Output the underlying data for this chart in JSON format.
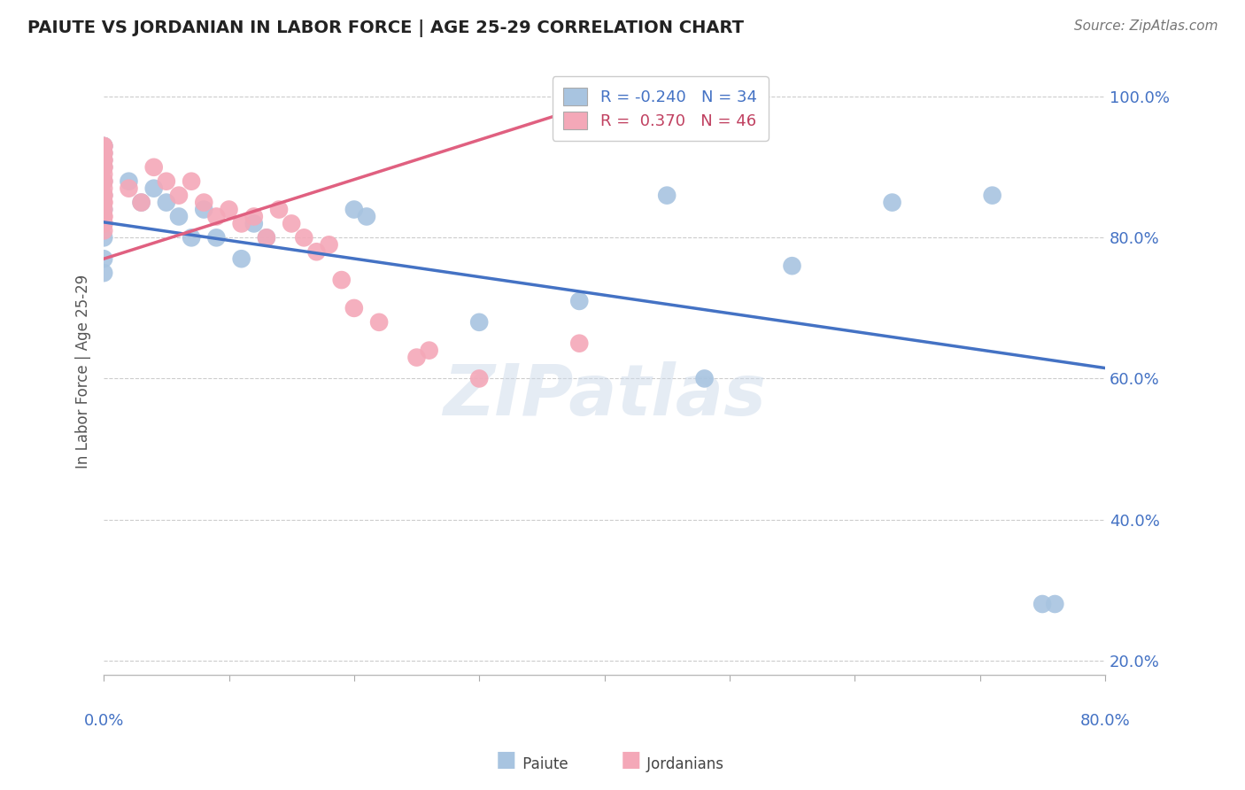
{
  "title": "PAIUTE VS JORDANIAN IN LABOR FORCE | AGE 25-29 CORRELATION CHART",
  "source": "Source: ZipAtlas.com",
  "ylabel": "In Labor Force | Age 25-29",
  "xlim": [
    0.0,
    0.8
  ],
  "ylim": [
    0.18,
    1.04
  ],
  "yticks": [
    0.2,
    0.4,
    0.6,
    0.8,
    1.0
  ],
  "ytick_labels": [
    "20.0%",
    "40.0%",
    "60.0%",
    "80.0%",
    "100.0%"
  ],
  "xticks": [
    0.0,
    0.1,
    0.2,
    0.3,
    0.4,
    0.5,
    0.6,
    0.7,
    0.8
  ],
  "paiute_color": "#a8c4e0",
  "jordanian_color": "#f4a8b8",
  "paiute_line_color": "#4472c4",
  "jordanian_line_color": "#e06080",
  "R_paiute": -0.24,
  "N_paiute": 34,
  "R_jordanian": 0.37,
  "N_jordanian": 46,
  "paiute_trend_x": [
    0.0,
    0.8
  ],
  "paiute_trend_y": [
    0.822,
    0.615
  ],
  "jordanian_trend_x": [
    0.0,
    0.4
  ],
  "jordanian_trend_y": [
    0.77,
    0.995
  ],
  "paiute_x": [
    0.0,
    0.0,
    0.0,
    0.0,
    0.0,
    0.0,
    0.0,
    0.0,
    0.0,
    0.0,
    0.0,
    0.0,
    0.02,
    0.03,
    0.04,
    0.05,
    0.06,
    0.07,
    0.08,
    0.09,
    0.11,
    0.12,
    0.13,
    0.2,
    0.21,
    0.3,
    0.38,
    0.45,
    0.48,
    0.55,
    0.63,
    0.71,
    0.75,
    0.76
  ],
  "paiute_y": [
    0.93,
    0.93,
    0.92,
    0.91,
    0.9,
    0.88,
    0.86,
    0.84,
    0.82,
    0.8,
    0.77,
    0.75,
    0.88,
    0.85,
    0.87,
    0.85,
    0.83,
    0.8,
    0.84,
    0.8,
    0.77,
    0.82,
    0.8,
    0.84,
    0.83,
    0.68,
    0.71,
    0.86,
    0.6,
    0.76,
    0.85,
    0.86,
    0.28,
    0.28
  ],
  "jordanian_x": [
    0.0,
    0.0,
    0.0,
    0.0,
    0.0,
    0.0,
    0.0,
    0.0,
    0.0,
    0.0,
    0.0,
    0.0,
    0.0,
    0.0,
    0.0,
    0.0,
    0.0,
    0.0,
    0.0,
    0.0,
    0.0,
    0.0,
    0.02,
    0.03,
    0.04,
    0.05,
    0.06,
    0.07,
    0.08,
    0.09,
    0.1,
    0.11,
    0.12,
    0.13,
    0.14,
    0.15,
    0.16,
    0.17,
    0.18,
    0.19,
    0.2,
    0.22,
    0.25,
    0.26,
    0.3,
    0.38
  ],
  "jordanian_y": [
    0.93,
    0.93,
    0.92,
    0.92,
    0.91,
    0.91,
    0.9,
    0.9,
    0.89,
    0.88,
    0.88,
    0.87,
    0.86,
    0.86,
    0.85,
    0.85,
    0.84,
    0.83,
    0.83,
    0.82,
    0.82,
    0.81,
    0.87,
    0.85,
    0.9,
    0.88,
    0.86,
    0.88,
    0.85,
    0.83,
    0.84,
    0.82,
    0.83,
    0.8,
    0.84,
    0.82,
    0.8,
    0.78,
    0.79,
    0.74,
    0.7,
    0.68,
    0.63,
    0.64,
    0.6,
    0.65
  ],
  "watermark": "ZIPatlas",
  "background_color": "#ffffff",
  "grid_color": "#cccccc"
}
